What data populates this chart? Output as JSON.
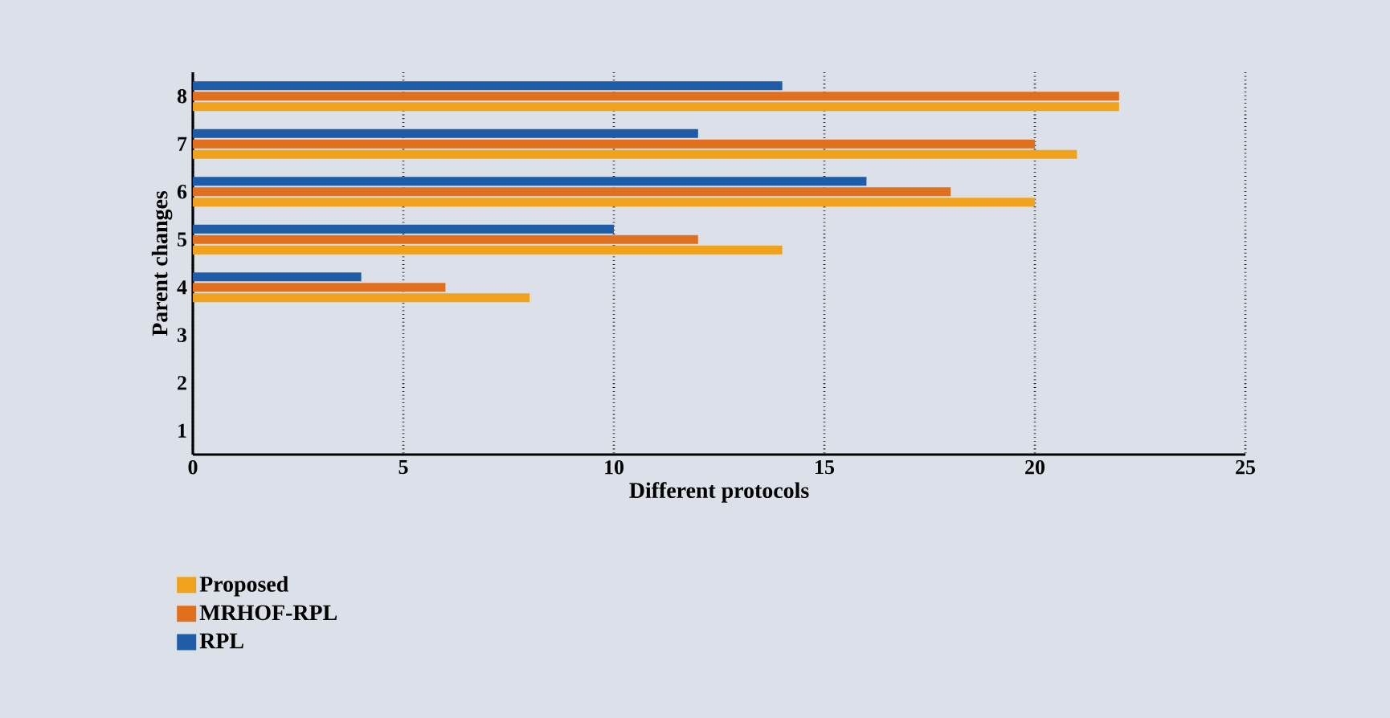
{
  "chart_data": {
    "type": "bar",
    "orientation": "horizontal",
    "xlabel": "Different protocols",
    "ylabel": "Parent changes",
    "categories": [
      "8",
      "7",
      "6",
      "5",
      "4",
      "3",
      "2",
      "1"
    ],
    "series": [
      {
        "name": "Proposed",
        "color": "#f0a21c",
        "values": [
          22,
          21,
          20,
          14,
          8,
          0,
          0,
          0
        ]
      },
      {
        "name": "MRHOF-RPL",
        "color": "#e0701e",
        "values": [
          22,
          20,
          18,
          12,
          6,
          0,
          0,
          0
        ]
      },
      {
        "name": "RPL",
        "color": "#1f5ca8",
        "values": [
          14,
          12,
          16,
          10,
          4,
          0,
          0,
          0
        ]
      }
    ],
    "xlim": [
      0,
      25
    ],
    "xticks": [
      0,
      5,
      10,
      15,
      20,
      25
    ],
    "grid": "x",
    "legend": "bottom left"
  }
}
